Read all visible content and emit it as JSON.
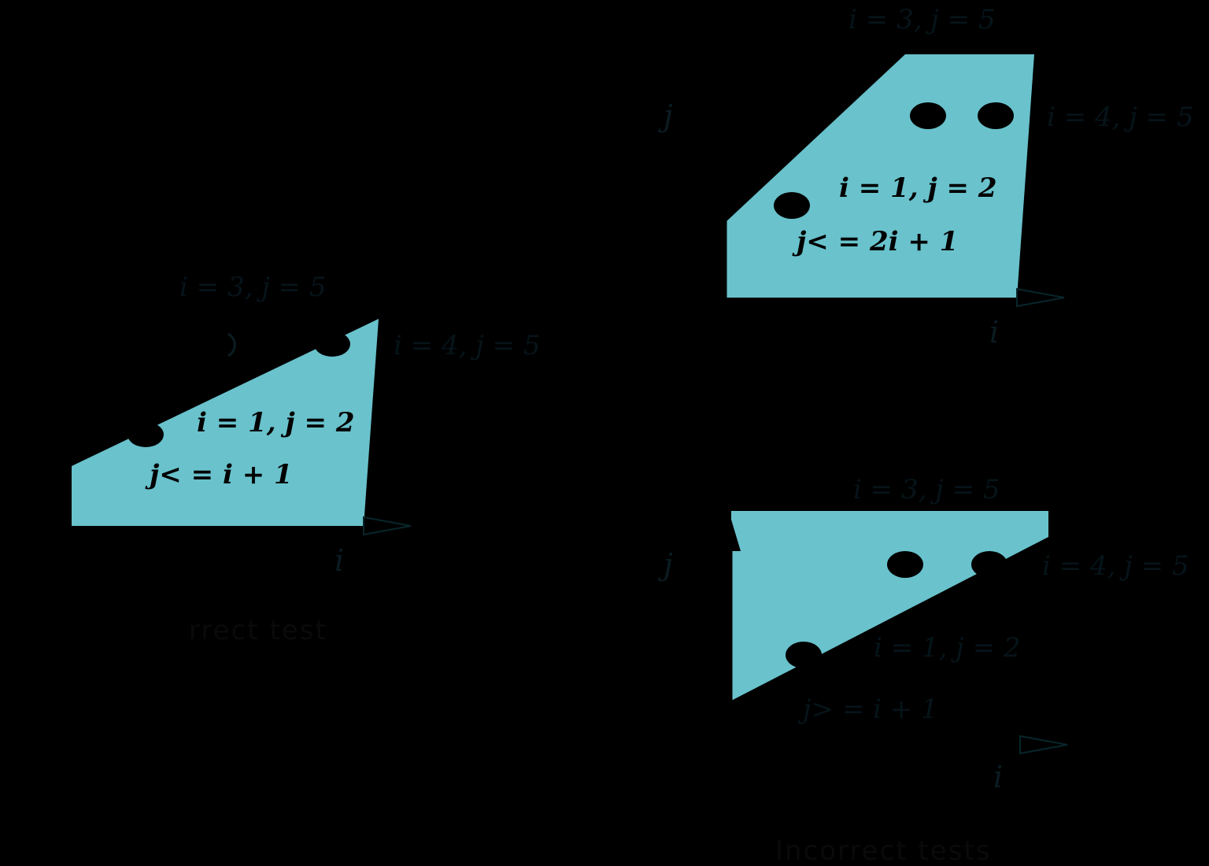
{
  "colors": {
    "background": "#000000",
    "region_fill": "#69c2cc",
    "ink": "#000000"
  },
  "panels": {
    "correct": {
      "constraint": "j< = i + 1",
      "point_a": "i = 1, j = 2",
      "point_b": "i = 3, j = 5",
      "point_c": "i = 4, j = 5",
      "x_axis": "i",
      "caption": "rrect test"
    },
    "incorrect_top": {
      "constraint": "j< = 2i + 1",
      "point_a": "i = 1, j = 2",
      "point_b": "i = 3, j = 5",
      "point_c": "i = 4, j = 5",
      "x_axis": "i",
      "y_axis": "j"
    },
    "incorrect_bottom": {
      "constraint": "j> = i + 1",
      "point_a": "i = 1, j = 2",
      "point_b": "i = 3, j = 5",
      "point_c": "i = 4, j = 5",
      "x_axis": "i",
      "y_axis": "j"
    }
  },
  "caption_incorrect": "Incorrect tests"
}
